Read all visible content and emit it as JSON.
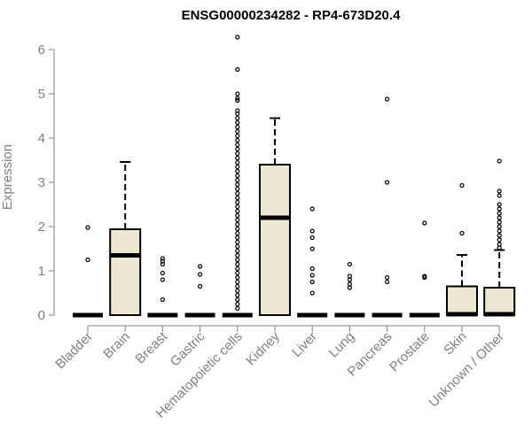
{
  "chart_data": {
    "type": "box",
    "title": "ENSG00000234282 - RP4-673D20.4",
    "xlabel": "",
    "ylabel": "Expression",
    "ylim": [
      0,
      6.3
    ],
    "yticks": [
      0,
      1,
      2,
      3,
      4,
      5,
      6
    ],
    "grid": false,
    "colors": {
      "box_fill": "#ede8d1",
      "stroke": "#000000",
      "axis_text": "#808080",
      "title": "#000000"
    },
    "categories": [
      "Bladder",
      "Brain",
      "Breast",
      "Gastric",
      "Hematopoietic cells",
      "Kidney",
      "Liver",
      "Lung",
      "Pancreas",
      "Prostate",
      "Skin",
      "Unknown / Other"
    ],
    "boxes": [
      {
        "category": "Bladder",
        "min": 0,
        "q1": 0,
        "median": 0,
        "q3": 0,
        "max": 0,
        "outliers": [
          1.25,
          1.98
        ]
      },
      {
        "category": "Brain",
        "min": 0,
        "q1": 0,
        "median": 1.35,
        "q3": 1.94,
        "max": 3.46,
        "outliers": []
      },
      {
        "category": "Breast",
        "min": 0,
        "q1": 0,
        "median": 0,
        "q3": 0,
        "max": 0,
        "outliers": [
          0.35,
          0.8,
          0.95,
          1.15,
          1.22,
          1.28
        ]
      },
      {
        "category": "Gastric",
        "min": 0,
        "q1": 0,
        "median": 0,
        "q3": 0,
        "max": 0,
        "outliers": [
          0.65,
          0.92,
          1.1
        ]
      },
      {
        "category": "Hematopoietic cells",
        "min": 0,
        "q1": 0,
        "median": 0,
        "q3": 0,
        "max": 0,
        "outliers": [
          0.15,
          0.25,
          0.35,
          0.45,
          0.55,
          0.65,
          0.75,
          0.85,
          0.95,
          1.05,
          1.15,
          1.25,
          1.35,
          1.45,
          1.55,
          1.65,
          1.75,
          1.85,
          1.95,
          2.05,
          2.15,
          2.25,
          2.35,
          2.45,
          2.55,
          2.65,
          2.75,
          2.85,
          2.95,
          3.05,
          3.15,
          3.25,
          3.35,
          3.45,
          3.55,
          3.65,
          3.75,
          3.85,
          3.95,
          4.05,
          4.15,
          4.25,
          4.35,
          4.45,
          4.55,
          4.62,
          4.85,
          4.9,
          5.0,
          5.55,
          6.28
        ]
      },
      {
        "category": "Kidney",
        "min": 0,
        "q1": 0,
        "median": 2.2,
        "q3": 3.4,
        "max": 4.45,
        "outliers": []
      },
      {
        "category": "Liver",
        "min": 0,
        "q1": 0,
        "median": 0,
        "q3": 0,
        "max": 0,
        "outliers": [
          0.5,
          0.75,
          0.9,
          1.05,
          1.5,
          1.75,
          1.9,
          2.4
        ]
      },
      {
        "category": "Lung",
        "min": 0,
        "q1": 0,
        "median": 0,
        "q3": 0,
        "max": 0,
        "outliers": [
          0.62,
          0.7,
          0.8,
          0.88,
          1.15
        ]
      },
      {
        "category": "Pancreas",
        "min": 0,
        "q1": 0,
        "median": 0,
        "q3": 0,
        "max": 0,
        "outliers": [
          0.75,
          0.85,
          3.0,
          4.88
        ]
      },
      {
        "category": "Prostate",
        "min": 0,
        "q1": 0,
        "median": 0,
        "q3": 0,
        "max": 0,
        "outliers": [
          0.85,
          0.88,
          2.08
        ]
      },
      {
        "category": "Skin",
        "min": 0,
        "q1": 0,
        "median": 0.02,
        "q3": 0.65,
        "max": 1.36,
        "outliers": [
          1.85,
          2.93
        ]
      },
      {
        "category": "Unknown / Other",
        "min": 0,
        "q1": 0,
        "median": 0.02,
        "q3": 0.62,
        "max": 1.47,
        "outliers": [
          1.52,
          1.6,
          1.7,
          1.8,
          1.9,
          2.0,
          2.1,
          2.2,
          2.3,
          2.4,
          2.5,
          2.7,
          2.8,
          3.48
        ]
      }
    ]
  }
}
